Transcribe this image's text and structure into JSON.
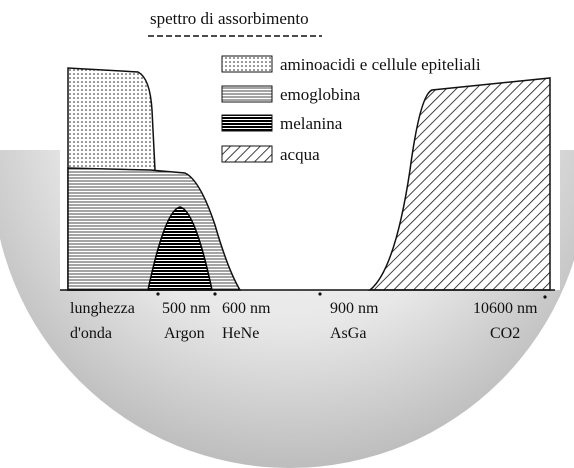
{
  "title": "spettro di assorbimento",
  "legend": [
    {
      "label": "aminoacidi e cellule epiteliali"
    },
    {
      "label": "emoglobina"
    },
    {
      "label": "melanina"
    },
    {
      "label": "acqua"
    }
  ],
  "axis_labels": [
    {
      "line1": "lunghezza",
      "line2": "d'onda"
    },
    {
      "line1": "500 nm",
      "line2": "Argon"
    },
    {
      "line1": "600 nm",
      "line2": "HeNe"
    },
    {
      "line1": "900 nm",
      "line2": "AsGa"
    },
    {
      "line1": "10600 nm",
      "line2": "CO2"
    }
  ]
}
